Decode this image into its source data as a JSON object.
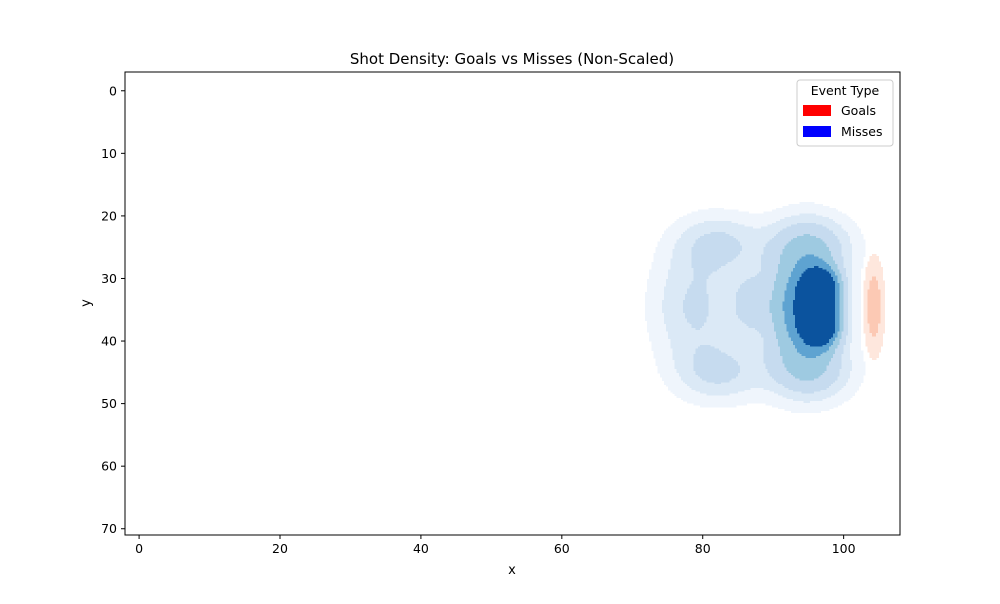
{
  "chart_data": {
    "type": "heatmap",
    "subtype": "kde-density-contour",
    "title": "Shot Density: Goals vs Misses (Non-Scaled)",
    "xlabel": "x",
    "ylabel": "y",
    "xlim": [
      -2,
      108
    ],
    "ylim": [
      71,
      -3
    ],
    "y_inverted": true,
    "x_ticks": [
      0,
      20,
      40,
      60,
      80,
      100
    ],
    "y_ticks": [
      0,
      10,
      20,
      30,
      40,
      50,
      60,
      70
    ],
    "grid": false,
    "legend": {
      "title": "Event Type",
      "placement": "top-right",
      "entries": [
        {
          "label": "Goals",
          "color": "#ff0000"
        },
        {
          "label": "Misses",
          "color": "#0000ff"
        }
      ]
    },
    "series": [
      {
        "name": "Goals",
        "colormap": "Reds",
        "hotspots": [
          {
            "x": 104.3,
            "y": 34.5,
            "sx": 0.9,
            "sy": 4.8,
            "w": 1.0
          }
        ],
        "levels": [
          0.22,
          0.6
        ],
        "level_colors": [
          "#fee7dd",
          "#fcc9b4"
        ]
      },
      {
        "name": "Misses",
        "colormap": "Blues",
        "hotspots": [
          {
            "x": 96.8,
            "y": 31.8,
            "sx": 1.8,
            "sy": 2.4,
            "w": 1.0
          },
          {
            "x": 96.8,
            "y": 37.4,
            "sx": 1.8,
            "sy": 2.4,
            "w": 1.0
          },
          {
            "x": 94.0,
            "y": 34.6,
            "sx": 3.6,
            "sy": 6.5,
            "w": 0.75
          },
          {
            "x": 95.5,
            "y": 24.5,
            "sx": 4.0,
            "sy": 3.2,
            "w": 0.28
          },
          {
            "x": 95.5,
            "y": 45.0,
            "sx": 4.0,
            "sy": 3.2,
            "w": 0.28
          },
          {
            "x": 82.5,
            "y": 24.5,
            "sx": 4.2,
            "sy": 3.2,
            "w": 0.24
          },
          {
            "x": 82.5,
            "y": 45.0,
            "sx": 4.2,
            "sy": 3.2,
            "w": 0.24
          },
          {
            "x": 79.0,
            "y": 34.5,
            "sx": 4.2,
            "sy": 6.5,
            "w": 0.26
          },
          {
            "x": 86.5,
            "y": 34.0,
            "sx": 1.6,
            "sy": 3.0,
            "w": 0.22
          }
        ],
        "levels": [
          0.06,
          0.14,
          0.24,
          0.4,
          0.6,
          0.82
        ],
        "level_colors": [
          "#eff5fc",
          "#dbe9f6",
          "#c6dbef",
          "#9ecae1",
          "#5ea3d1",
          "#0b539e"
        ]
      }
    ]
  }
}
